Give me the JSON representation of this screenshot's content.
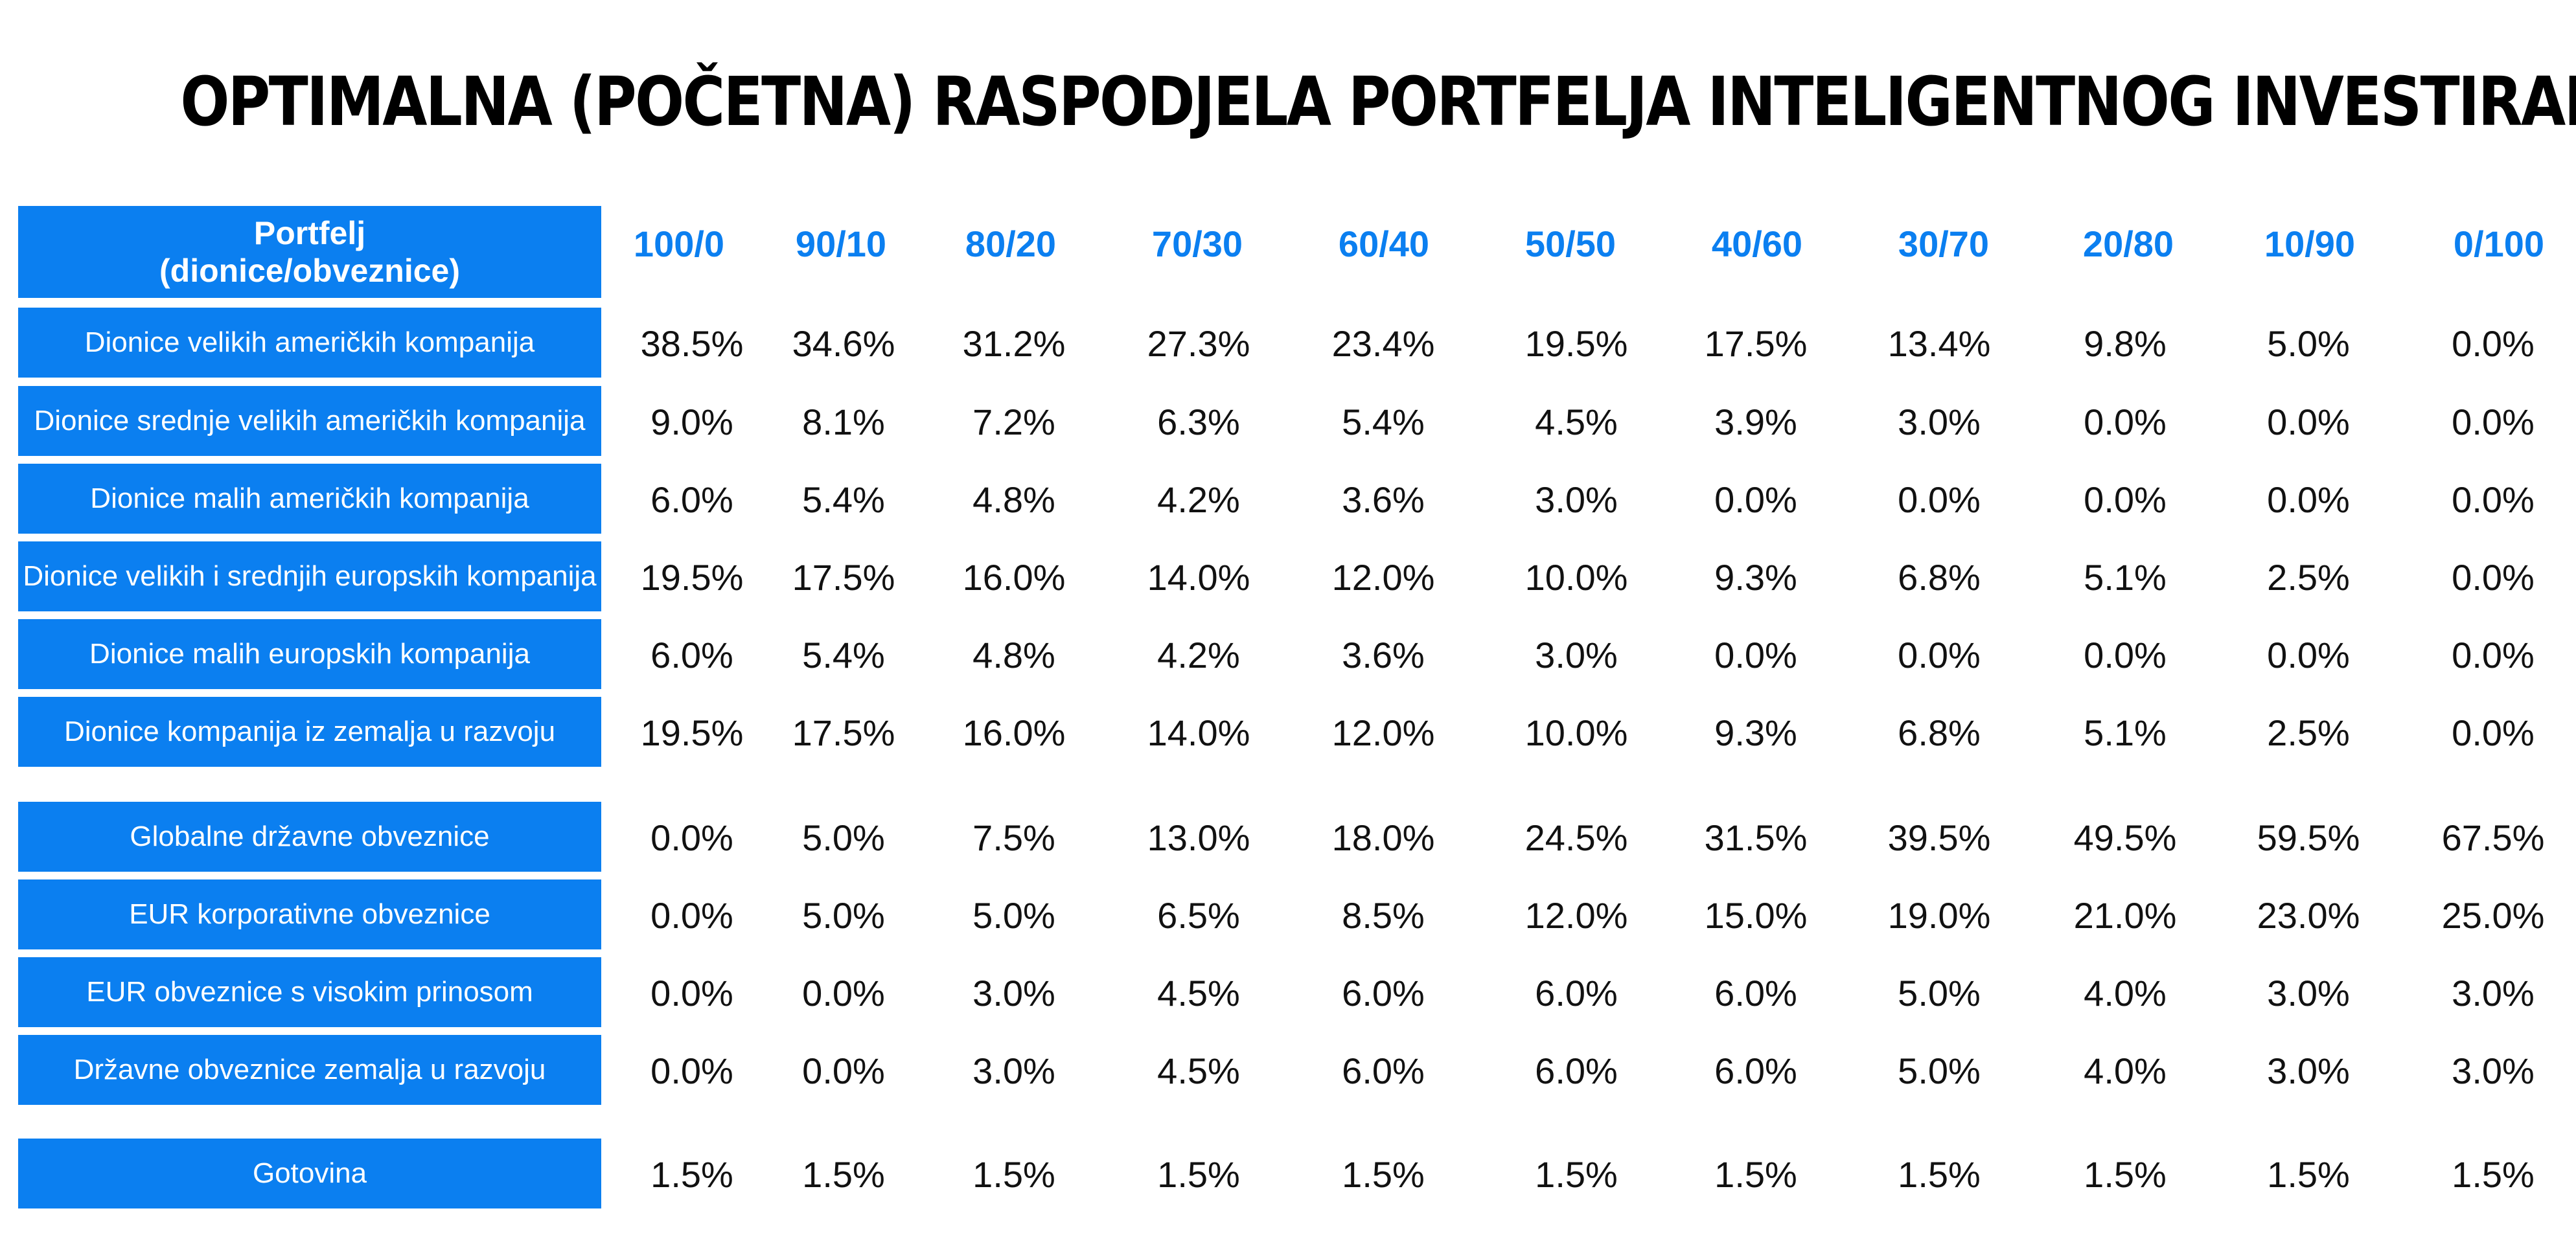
{
  "title": "OPTIMALNA (POČETNA) RASPODJELA PORTFELJA INTELIGENTNOG INVESTIRANJA",
  "colors": {
    "accent": "#0B7FF0",
    "text": "#111111",
    "background": "#FFFFFF"
  },
  "chart_data": {
    "type": "table",
    "title": "OPTIMALNA (POČETNA) RASPODJELA PORTFELJA INTELIGENTNOG INVESTIRANJA",
    "header": {
      "line1": "Portfelj",
      "line2": "(dionice/obveznice)"
    },
    "columns": [
      "100/0",
      "90/10",
      "80/20",
      "70/30",
      "60/40",
      "50/50",
      "40/60",
      "30/70",
      "20/80",
      "10/90",
      "0/100"
    ],
    "rows": [
      {
        "label": "Dionice velikih američkih kompanija",
        "values": [
          "38.5%",
          "34.6%",
          "31.2%",
          "27.3%",
          "23.4%",
          "19.5%",
          "17.5%",
          "13.4%",
          "9.8%",
          "5.0%",
          "0.0%"
        ]
      },
      {
        "label": "Dionice srednje velikih američkih kompanija",
        "values": [
          "9.0%",
          "8.1%",
          "7.2%",
          "6.3%",
          "5.4%",
          "4.5%",
          "3.9%",
          "3.0%",
          "0.0%",
          "0.0%",
          "0.0%"
        ]
      },
      {
        "label": "Dionice malih američkih kompanija",
        "values": [
          "6.0%",
          "5.4%",
          "4.8%",
          "4.2%",
          "3.6%",
          "3.0%",
          "0.0%",
          "0.0%",
          "0.0%",
          "0.0%",
          "0.0%"
        ]
      },
      {
        "label": "Dionice velikih i srednjih europskih kompanija",
        "values": [
          "19.5%",
          "17.5%",
          "16.0%",
          "14.0%",
          "12.0%",
          "10.0%",
          "9.3%",
          "6.8%",
          "5.1%",
          "2.5%",
          "0.0%"
        ]
      },
      {
        "label": "Dionice malih europskih kompanija",
        "values": [
          "6.0%",
          "5.4%",
          "4.8%",
          "4.2%",
          "3.6%",
          "3.0%",
          "0.0%",
          "0.0%",
          "0.0%",
          "0.0%",
          "0.0%"
        ]
      },
      {
        "label": "Dionice kompanija iz zemalja u razvoju",
        "values": [
          "19.5%",
          "17.5%",
          "16.0%",
          "14.0%",
          "12.0%",
          "10.0%",
          "9.3%",
          "6.8%",
          "5.1%",
          "2.5%",
          "0.0%"
        ]
      },
      {
        "label": "Globalne državne obveznice",
        "values": [
          "0.0%",
          "5.0%",
          "7.5%",
          "13.0%",
          "18.0%",
          "24.5%",
          "31.5%",
          "39.5%",
          "49.5%",
          "59.5%",
          "67.5%"
        ]
      },
      {
        "label": "EUR korporativne obveznice",
        "values": [
          "0.0%",
          "5.0%",
          "5.0%",
          "6.5%",
          "8.5%",
          "12.0%",
          "15.0%",
          "19.0%",
          "21.0%",
          "23.0%",
          "25.0%"
        ]
      },
      {
        "label": "EUR obveznice s visokim prinosom",
        "values": [
          "0.0%",
          "0.0%",
          "3.0%",
          "4.5%",
          "6.0%",
          "6.0%",
          "6.0%",
          "5.0%",
          "4.0%",
          "3.0%",
          "3.0%"
        ]
      },
      {
        "label": "Državne obveznice zemalja u razvoju",
        "values": [
          "0.0%",
          "0.0%",
          "3.0%",
          "4.5%",
          "6.0%",
          "6.0%",
          "6.0%",
          "5.0%",
          "4.0%",
          "3.0%",
          "3.0%"
        ]
      },
      {
        "label": "Gotovina",
        "values": [
          "1.5%",
          "1.5%",
          "1.5%",
          "1.5%",
          "1.5%",
          "1.5%",
          "1.5%",
          "1.5%",
          "1.5%",
          "1.5%",
          "1.5%"
        ]
      }
    ]
  }
}
